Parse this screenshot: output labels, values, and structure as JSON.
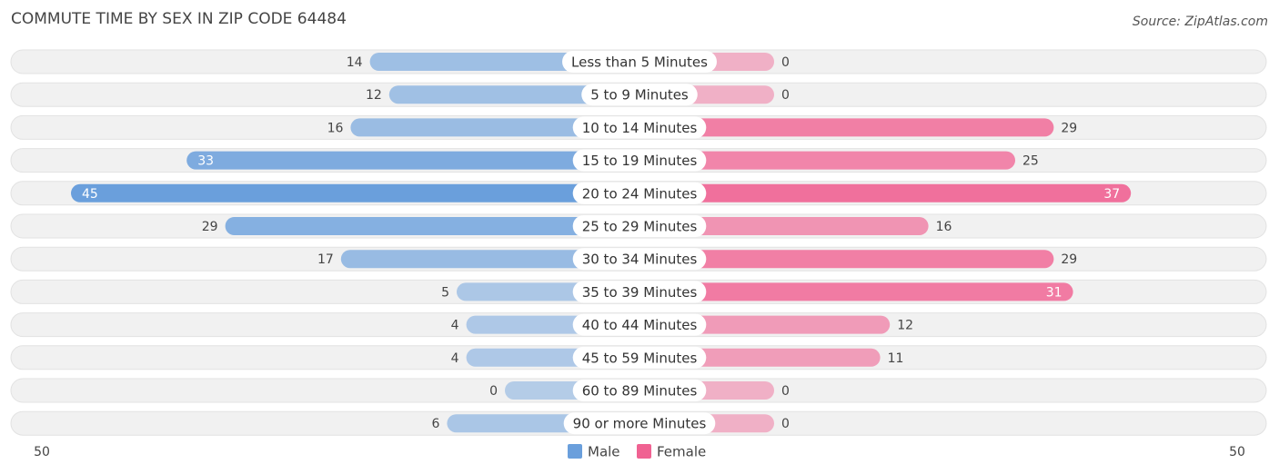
{
  "chart_data": {
    "type": "diverging-bar",
    "title": "COMMUTE TIME BY SEX IN ZIP CODE 64484",
    "source": "Source: ZipAtlas.com",
    "categories": [
      "Less than 5 Minutes",
      "5 to 9 Minutes",
      "10 to 14 Minutes",
      "15 to 19 Minutes",
      "20 to 24 Minutes",
      "25 to 29 Minutes",
      "30 to 34 Minutes",
      "35 to 39 Minutes",
      "40 to 44 Minutes",
      "45 to 59 Minutes",
      "60 to 89 Minutes",
      "90 or more Minutes"
    ],
    "series": [
      {
        "name": "Male",
        "color": "#6a9fdc",
        "values": [
          14,
          12,
          16,
          33,
          45,
          29,
          17,
          5,
          4,
          4,
          0,
          6
        ]
      },
      {
        "name": "Female",
        "color": "#f06292",
        "values": [
          0,
          0,
          29,
          25,
          37,
          16,
          29,
          31,
          12,
          11,
          0,
          0
        ]
      }
    ],
    "xlim": [
      -50,
      50
    ],
    "xticks": [
      {
        "value": -50,
        "label": "50"
      },
      {
        "value": 50,
        "label": "50"
      }
    ],
    "legend": "bottom"
  }
}
